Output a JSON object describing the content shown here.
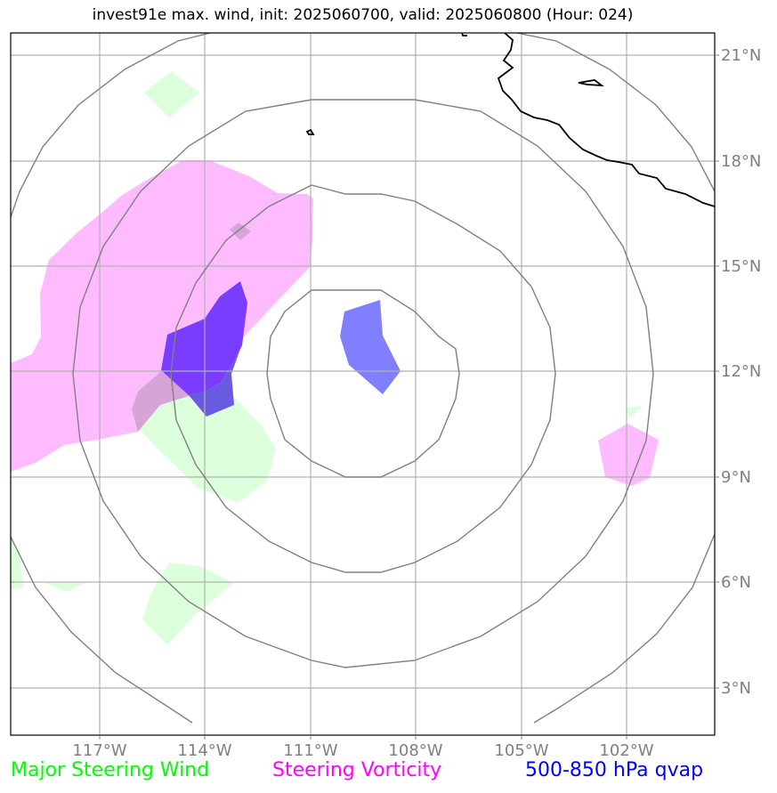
{
  "title": "invest91e max. wind, init: 2025060700, valid: 2025060800 (Hour: 024)",
  "map": {
    "lon_labels": [
      "117°W",
      "114°W",
      "111°W",
      "108°W",
      "105°W",
      "102°W"
    ],
    "lat_labels": [
      "21°N",
      "18°N",
      "15°N",
      "12°N",
      "9°N",
      "6°N",
      "3°N"
    ],
    "gridline_color": "#b0b0b0",
    "range_ring_color": "#808080",
    "coastline_color": "#000000"
  },
  "legend": {
    "wind": {
      "label": "Major Steering Wind",
      "color": "#00ff00"
    },
    "vorticity": {
      "label": "Steering Vorticity",
      "color": "#ff00ff"
    },
    "qvap": {
      "label": "500-850 hPa qvap",
      "color": "#0000ff"
    }
  },
  "colors": {
    "wind_fill": "#dcffdc",
    "vorticity_fill": "#ffbbff",
    "qvap_fill": "#8080ff",
    "qvap_dark_fill": "#7a3cff",
    "qvap_mix_fill": "#6a5ae0"
  }
}
